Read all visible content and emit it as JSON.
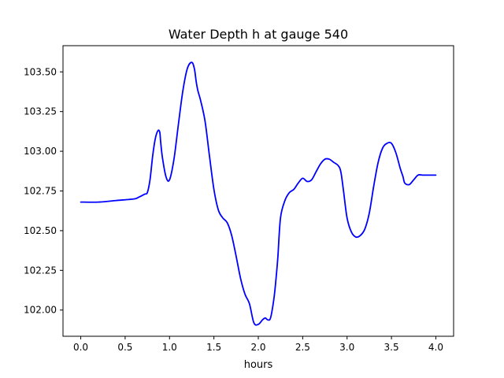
{
  "chart_data": {
    "type": "line",
    "title": "Water Depth h at gauge 540",
    "xlabel": "hours",
    "ylabel": "",
    "xlim": [
      -0.2,
      4.2
    ],
    "ylim": [
      101.835,
      103.665
    ],
    "xticks": [
      0.0,
      0.5,
      1.0,
      1.5,
      2.0,
      2.5,
      3.0,
      3.5,
      4.0
    ],
    "xtick_labels": [
      "0.0",
      "0.5",
      "1.0",
      "1.5",
      "2.0",
      "2.5",
      "3.0",
      "3.5",
      "4.0"
    ],
    "yticks": [
      102.0,
      102.25,
      102.5,
      102.75,
      103.0,
      103.25,
      103.5
    ],
    "ytick_labels": [
      "102.00",
      "102.25",
      "102.50",
      "102.75",
      "103.00",
      "103.25",
      "103.50"
    ],
    "grid": false,
    "series": [
      {
        "color": "#0000ff",
        "x": [
          0.0,
          0.2,
          0.4,
          0.6,
          0.65,
          0.72,
          0.75,
          0.78,
          0.81,
          0.84,
          0.87,
          0.89,
          0.9,
          0.92,
          0.96,
          1.0,
          1.05,
          1.1,
          1.15,
          1.2,
          1.25,
          1.28,
          1.3,
          1.32,
          1.35,
          1.4,
          1.45,
          1.5,
          1.55,
          1.6,
          1.65,
          1.7,
          1.75,
          1.8,
          1.85,
          1.9,
          1.95,
          2.0,
          2.05,
          2.08,
          2.1,
          2.13,
          2.15,
          2.18,
          2.2,
          2.22,
          2.25,
          2.3,
          2.35,
          2.4,
          2.45,
          2.5,
          2.55,
          2.6,
          2.65,
          2.7,
          2.75,
          2.8,
          2.85,
          2.9,
          2.93,
          2.96,
          3.0,
          3.05,
          3.1,
          3.15,
          3.2,
          3.25,
          3.3,
          3.35,
          3.4,
          3.45,
          3.5,
          3.55,
          3.6,
          3.63,
          3.65,
          3.7,
          3.75,
          3.8,
          3.85,
          3.9,
          3.95,
          4.0
        ],
        "y": [
          102.68,
          102.68,
          102.69,
          102.7,
          102.71,
          102.73,
          102.74,
          102.82,
          102.97,
          103.08,
          103.13,
          103.12,
          103.06,
          102.96,
          102.84,
          102.82,
          102.95,
          103.17,
          103.38,
          103.52,
          103.56,
          103.52,
          103.44,
          103.38,
          103.32,
          103.19,
          102.97,
          102.76,
          102.63,
          102.58,
          102.55,
          102.47,
          102.34,
          102.2,
          102.1,
          102.04,
          101.92,
          101.91,
          101.94,
          101.95,
          101.94,
          101.94,
          101.98,
          102.09,
          102.2,
          102.33,
          102.58,
          102.69,
          102.74,
          102.76,
          102.8,
          102.83,
          102.81,
          102.82,
          102.87,
          102.92,
          102.95,
          102.95,
          102.93,
          102.91,
          102.87,
          102.75,
          102.58,
          102.49,
          102.46,
          102.47,
          102.51,
          102.61,
          102.78,
          102.93,
          103.02,
          103.05,
          103.05,
          102.99,
          102.89,
          102.84,
          102.8,
          102.79,
          102.82,
          102.85,
          102.85,
          102.85,
          102.85,
          102.85
        ]
      }
    ]
  }
}
